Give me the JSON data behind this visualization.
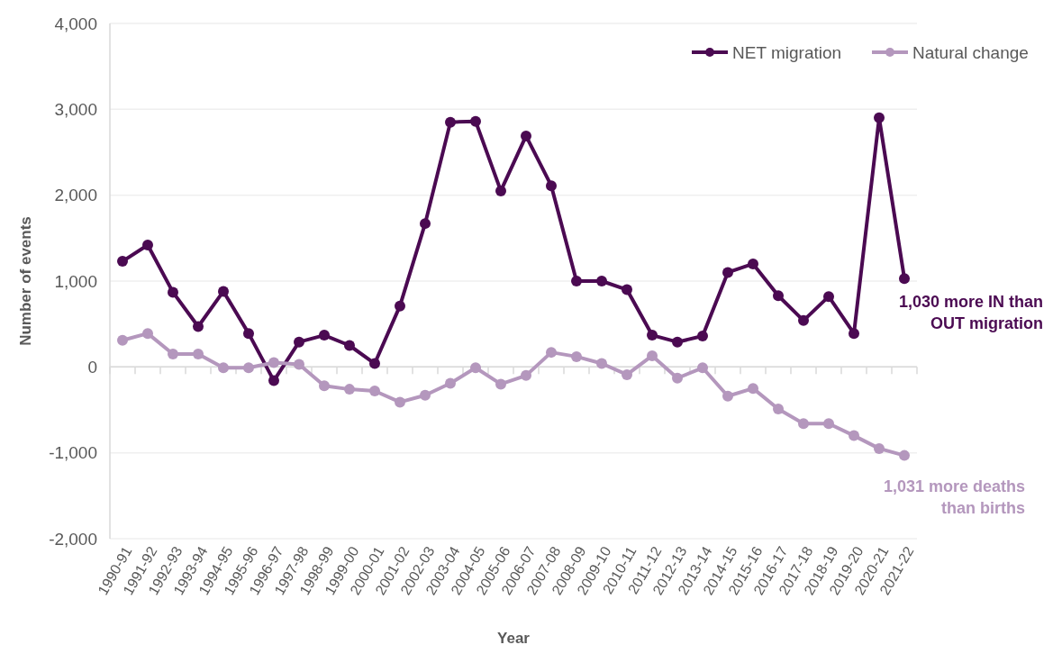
{
  "chart_data": {
    "type": "line",
    "xlabel": "Year",
    "ylabel": "Number of events",
    "categories": [
      "1990-91",
      "1991-92",
      "1992-93",
      "1993-94",
      "1994-95",
      "1995-96",
      "1996-97",
      "1997-98",
      "1998-99",
      "1999-00",
      "2000-01",
      "2001-02",
      "2002-03",
      "2003-04",
      "2004-05",
      "2005-06",
      "2006-07",
      "2007-08",
      "2008-09",
      "2009-10",
      "2010-11",
      "2011-12",
      "2012-13",
      "2013-14",
      "2014-15",
      "2015-16",
      "2016-17",
      "2017-18",
      "2018-19",
      "2019-20",
      "2020-21",
      "2021-22"
    ],
    "series": [
      {
        "name": "NET migration",
        "color": "#4b0a52",
        "values": [
          1230,
          1420,
          870,
          470,
          880,
          390,
          -160,
          290,
          370,
          250,
          40,
          710,
          1670,
          2850,
          2860,
          2050,
          2690,
          2110,
          1000,
          1000,
          900,
          370,
          290,
          360,
          1100,
          1200,
          830,
          540,
          820,
          390,
          2900,
          1030
        ]
      },
      {
        "name": "Natural change",
        "color": "#b497bd",
        "values": [
          310,
          390,
          150,
          150,
          -10,
          -10,
          50,
          30,
          -220,
          -260,
          -280,
          -410,
          -330,
          -190,
          -10,
          -200,
          -100,
          170,
          120,
          40,
          -90,
          130,
          -130,
          -10,
          -340,
          -250,
          -490,
          -660,
          -660,
          -800,
          -950,
          -1031
        ]
      }
    ],
    "ylim": [
      -2000,
      4000
    ],
    "yticks": [
      {
        "value": -2000,
        "label": "-2,000"
      },
      {
        "value": -1000,
        "label": "-1,000"
      },
      0,
      {
        "value": 1000,
        "label": "1,000"
      },
      {
        "value": 2000,
        "label": "2,000"
      },
      {
        "value": 3000,
        "label": "3,000"
      },
      {
        "value": 4000,
        "label": "4,000"
      }
    ],
    "grid": "y",
    "legend": "top right",
    "marker": "circle",
    "line_style": "solid",
    "annotations": [
      {
        "text": "1,030 more IN than OUT migration",
        "x": "2021-22",
        "y": 1030
      },
      {
        "text": "1,031 more deaths than births",
        "x": "2021-22",
        "y": -1031
      }
    ]
  }
}
